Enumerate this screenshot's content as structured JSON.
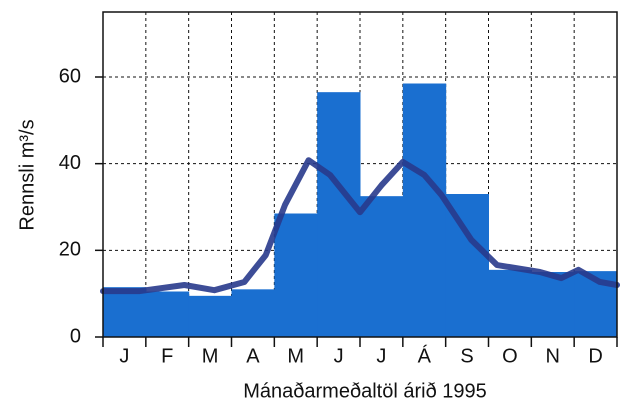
{
  "chart_data": {
    "type": "bar-line",
    "x_label": "Mánaðarmeðaltöl árið 1995",
    "y_label": "Rennsli m³/s",
    "categories": [
      "J",
      "F",
      "M",
      "A",
      "M",
      "J",
      "J",
      "Á",
      "S",
      "O",
      "N",
      "D"
    ],
    "ylim": [
      0,
      75
    ],
    "yticks": [
      0,
      20,
      40,
      60
    ],
    "xlim": [
      0,
      12
    ],
    "grid": true,
    "series": [
      {
        "kind": "bar",
        "color": "#1a6fd0",
        "values": [
          11.5,
          10.5,
          9.5,
          11,
          28.5,
          56.5,
          32.5,
          58.5,
          33,
          15.5,
          15,
          15.2
        ]
      },
      {
        "kind": "line",
        "color": "#283a8c",
        "x": [
          0,
          0.86,
          1.9,
          2.6,
          3.3,
          3.8,
          4.25,
          4.8,
          5.3,
          6.0,
          6.5,
          7.0,
          7.5,
          7.9,
          8.6,
          9.2,
          10.2,
          10.7,
          11.1,
          11.6,
          12
        ],
        "values": [
          10.6,
          10.6,
          12,
          10.8,
          12.7,
          18.9,
          30.5,
          40.8,
          37.4,
          28.8,
          35,
          40.4,
          37.4,
          32.8,
          22.4,
          16.6,
          15,
          13.6,
          15.5,
          12.7,
          12
        ]
      }
    ]
  }
}
